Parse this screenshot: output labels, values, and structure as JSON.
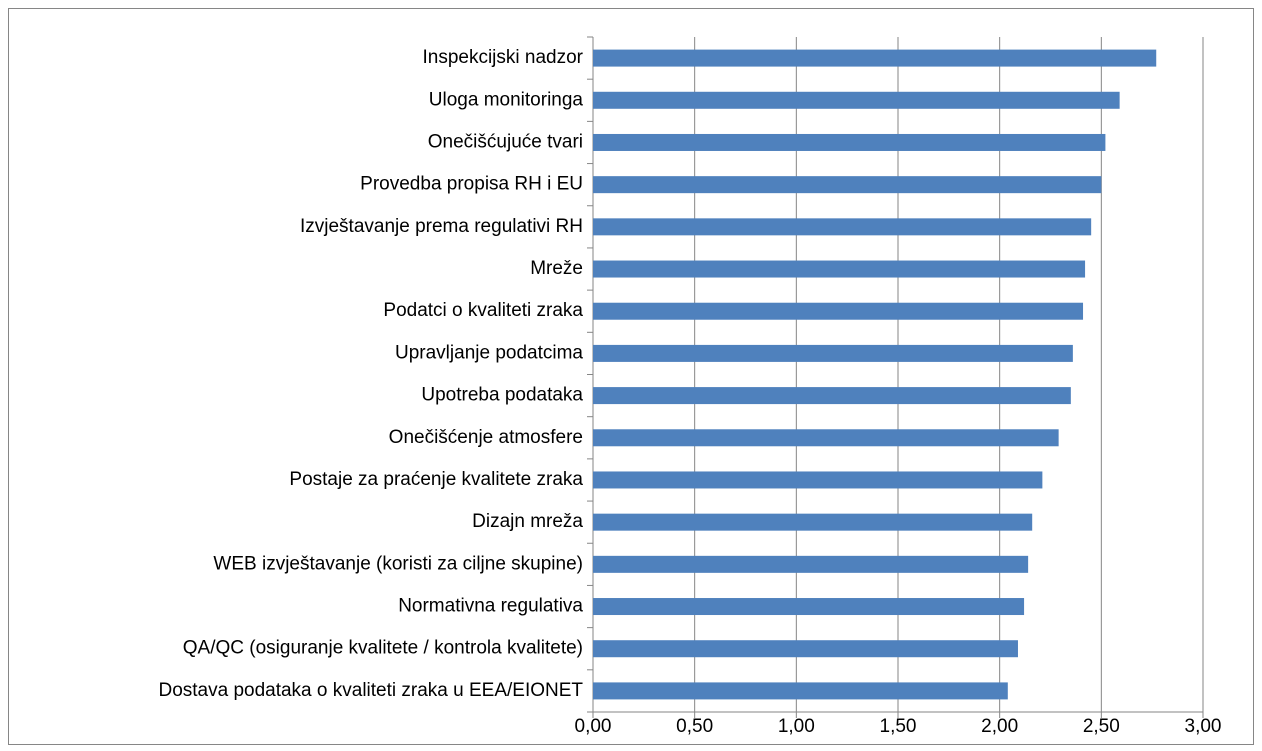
{
  "chart_data": {
    "type": "bar",
    "orientation": "horizontal",
    "categories": [
      "Inspekcijski nadzor",
      "Uloga monitoringa",
      "Onečišćujuće tvari",
      "Provedba propisa RH i EU",
      "Izvještavanje prema regulativi RH",
      "Mreže",
      "Podatci o kvaliteti zraka",
      "Upravljanje podatcima",
      "Upotreba podataka",
      "Onečišćenje atmosfere",
      "Postaje za praćenje kvalitete zraka",
      "Dizajn mreža",
      "WEB izvještavanje (koristi za ciljne skupine)",
      "Normativna regulativa",
      "QA/QC (osiguranje kvalitete / kontrola kvalitete)",
      "Dostava podataka o kvaliteti zraka u EEA/EIONET"
    ],
    "values": [
      2.77,
      2.59,
      2.52,
      2.5,
      2.45,
      2.42,
      2.41,
      2.36,
      2.35,
      2.29,
      2.21,
      2.16,
      2.14,
      2.12,
      2.09,
      2.04
    ],
    "color": "#4f81bd",
    "xlim": [
      0,
      3
    ],
    "xticks": [
      {
        "value": 0,
        "label": "0,00"
      },
      {
        "value": 0.5,
        "label": "0,50"
      },
      {
        "value": 1,
        "label": "1,00"
      },
      {
        "value": 1.5,
        "label": "1,50"
      },
      {
        "value": 2,
        "label": "2,00"
      },
      {
        "value": 2.5,
        "label": "2,50"
      },
      {
        "value": 3,
        "label": "3,00"
      }
    ],
    "grid": true
  }
}
